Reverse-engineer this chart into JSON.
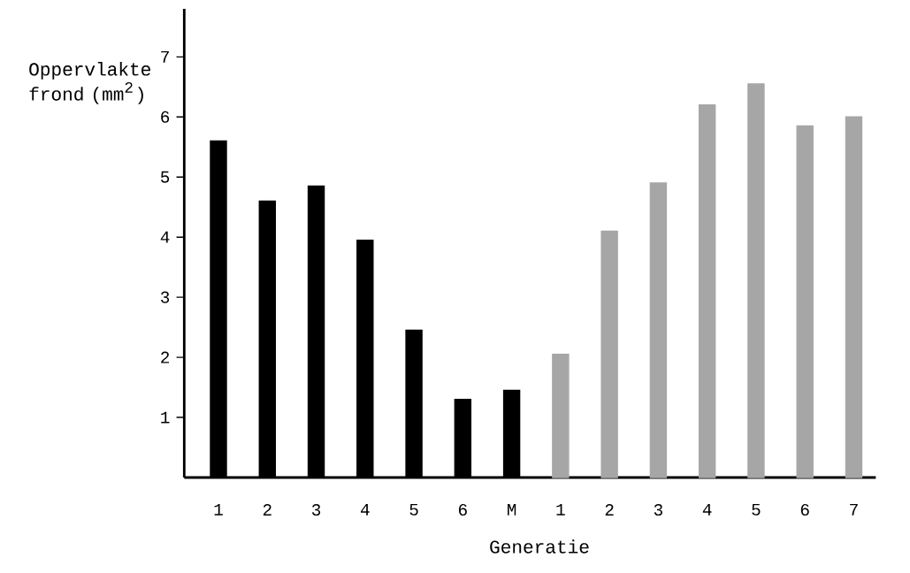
{
  "chart_data": {
    "type": "bar",
    "xlabel": "Generatie",
    "ylabel": "Oppervlakte frond (mm$^{2}$)",
    "categories": [
      "1",
      "2",
      "3",
      "4",
      "5",
      "6",
      "M",
      "1",
      "2",
      "3",
      "4",
      "5",
      "6",
      "7"
    ],
    "series": [
      {
        "color": "#000000",
        "values": [
          5.6,
          4.6,
          4.85,
          3.95,
          2.45,
          1.3,
          1.45,
          null,
          null,
          null,
          null,
          null,
          null,
          null
        ]
      },
      {
        "color": "#a6a6a6",
        "values": [
          null,
          null,
          null,
          null,
          null,
          null,
          null,
          2.05,
          4.1,
          4.9,
          6.2,
          6.55,
          5.85,
          6.0
        ]
      }
    ],
    "ylim": [
      0,
      7.8
    ],
    "yticks": [
      1,
      2,
      3,
      4,
      5,
      6,
      7
    ],
    "grid": false
  }
}
